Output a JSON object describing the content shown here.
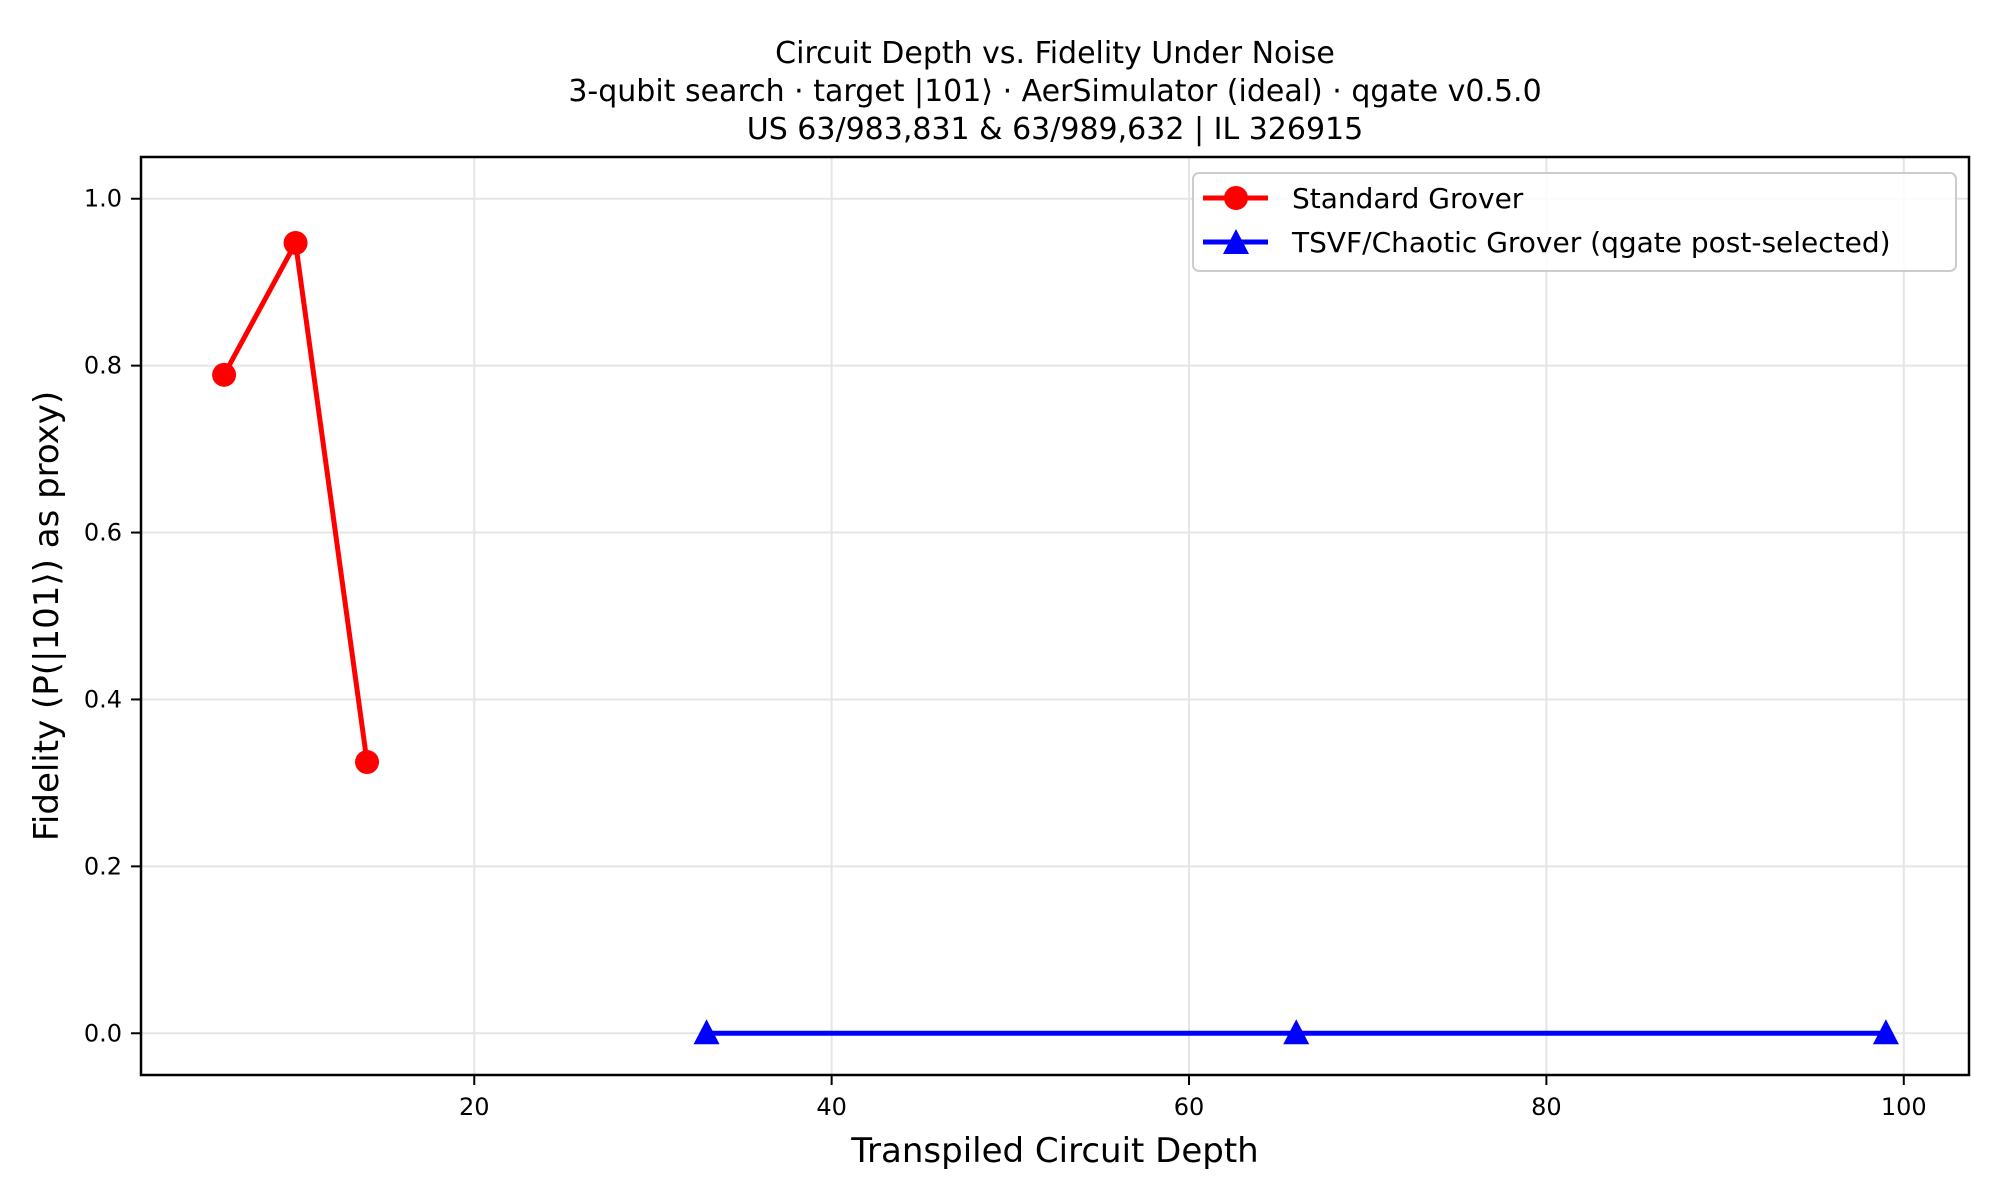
{
  "chart_data": {
    "type": "line",
    "title": "Circuit Depth vs. Fidelity Under Noise",
    "subtitle_lines": [
      "3-qubit search · target |101⟩ · AerSimulator (ideal) · qgate v0.5.0",
      "US 63/983,831 & 63/989,632 | IL 326915"
    ],
    "xlabel": "Transpiled Circuit Depth",
    "ylabel": "Fidelity (P(|101⟩) as proxy)",
    "xlim": [
      1.35,
      103.65
    ],
    "ylim": [
      -0.05,
      1.05
    ],
    "xticks": [
      20,
      40,
      60,
      80,
      100
    ],
    "xtick_labels": [
      "20",
      "40",
      "60",
      "80",
      "100"
    ],
    "yticks": [
      0.0,
      0.2,
      0.4,
      0.6,
      0.8,
      1.0
    ],
    "ytick_labels": [
      "0.0",
      "0.2",
      "0.4",
      "0.6",
      "0.8",
      "1.0"
    ],
    "grid": true,
    "legend_position": "upper right",
    "series": [
      {
        "name": "Standard Grover",
        "color": "#ff0000",
        "marker": "circle",
        "x": [
          6,
          10,
          14
        ],
        "y": [
          0.789,
          0.947,
          0.325
        ]
      },
      {
        "name": "TSVF/Chaotic Grover (qgate post-selected)",
        "color": "#0000ff",
        "marker": "triangle",
        "x": [
          33,
          66,
          99
        ],
        "y": [
          0.0,
          0.0,
          0.0
        ]
      }
    ]
  },
  "colors": {
    "grid": "#e5e5e5",
    "axis": "#000000",
    "legend_border": "#cccccc"
  }
}
